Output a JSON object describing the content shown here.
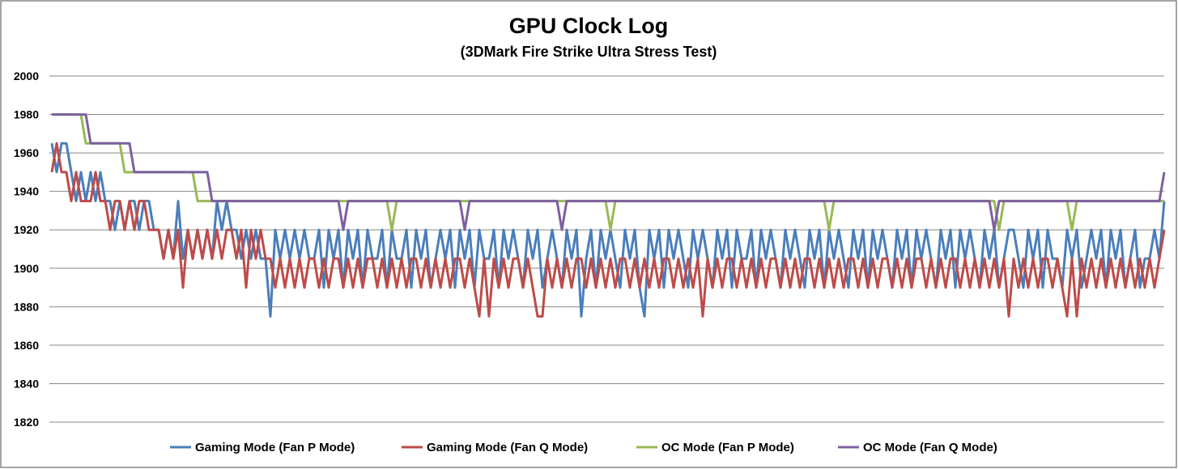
{
  "chart_data": {
    "type": "line",
    "title": "GPU Clock Log",
    "subtitle": "(3DMark Fire Strike Ultra Stress Test)",
    "xlabel": "",
    "ylabel": "",
    "ylim": [
      1820,
      2000
    ],
    "yticks": [
      2000,
      1980,
      1960,
      1940,
      1920,
      1900,
      1880,
      1860,
      1840,
      1820
    ],
    "grid": true,
    "legend_position": "bottom",
    "series": [
      {
        "name": "Gaming Mode (Fan P Mode)",
        "color": "#4a7ebb",
        "values": [
          1965,
          1950,
          1965,
          1965,
          1950,
          1935,
          1950,
          1935,
          1950,
          1935,
          1950,
          1935,
          1935,
          1920,
          1935,
          1920,
          1935,
          1935,
          1920,
          1935,
          1935,
          1920,
          1920,
          1905,
          1920,
          1905,
          1935,
          1905,
          1920,
          1905,
          1920,
          1905,
          1920,
          1905,
          1935,
          1920,
          1935,
          1920,
          1920,
          1905,
          1920,
          1905,
          1920,
          1905,
          1905,
          1875,
          1920,
          1905,
          1920,
          1905,
          1920,
          1905,
          1920,
          1905,
          1905,
          1920,
          1890,
          1920,
          1905,
          1920,
          1890,
          1920,
          1905,
          1920,
          1890,
          1920,
          1905,
          1905,
          1920,
          1890,
          1920,
          1905,
          1905,
          1920,
          1890,
          1920,
          1905,
          1920,
          1890,
          1905,
          1920,
          1905,
          1920,
          1890,
          1920,
          1905,
          1920,
          1890,
          1920,
          1905,
          1905,
          1920,
          1890,
          1920,
          1905,
          1920,
          1905,
          1890,
          1920,
          1905,
          1920,
          1890,
          1905,
          1920,
          1905,
          1890,
          1920,
          1905,
          1920,
          1875,
          1905,
          1920,
          1890,
          1920,
          1905,
          1920,
          1905,
          1890,
          1920,
          1905,
          1920,
          1890,
          1875,
          1920,
          1905,
          1920,
          1890,
          1920,
          1905,
          1920,
          1905,
          1890,
          1920,
          1905,
          1920,
          1905,
          1890,
          1920,
          1905,
          1920,
          1890,
          1920,
          1905,
          1905,
          1920,
          1890,
          1920,
          1905,
          1920,
          1905,
          1890,
          1920,
          1905,
          1920,
          1905,
          1890,
          1920,
          1905,
          1920,
          1890,
          1920,
          1905,
          1920,
          1905,
          1890,
          1920,
          1905,
          1920,
          1890,
          1920,
          1905,
          1920,
          1905,
          1890,
          1920,
          1905,
          1920,
          1890,
          1920,
          1905,
          1920,
          1905,
          1890,
          1920,
          1905,
          1920,
          1890,
          1920,
          1905,
          1920,
          1905,
          1890,
          1920,
          1905,
          1920,
          1890,
          1905,
          1920,
          1920,
          1905,
          1890,
          1920,
          1905,
          1920,
          1890,
          1920,
          1905,
          1905,
          1890,
          1920,
          1905,
          1920,
          1890,
          1905,
          1920,
          1905,
          1920,
          1890,
          1920,
          1905,
          1920,
          1890,
          1905,
          1920,
          1890,
          1905,
          1905,
          1920,
          1905,
          1935
        ]
      },
      {
        "name": "Gaming Mode (Fan Q Mode)",
        "color": "#be4b48",
        "values": [
          1950,
          1965,
          1950,
          1950,
          1935,
          1950,
          1935,
          1935,
          1935,
          1950,
          1935,
          1935,
          1920,
          1935,
          1935,
          1920,
          1935,
          1920,
          1935,
          1935,
          1920,
          1920,
          1920,
          1905,
          1920,
          1905,
          1920,
          1890,
          1920,
          1905,
          1920,
          1905,
          1920,
          1905,
          1920,
          1905,
          1920,
          1920,
          1905,
          1920,
          1890,
          1920,
          1905,
          1920,
          1905,
          1905,
          1890,
          1905,
          1890,
          1905,
          1890,
          1905,
          1890,
          1905,
          1905,
          1890,
          1905,
          1890,
          1905,
          1905,
          1890,
          1905,
          1890,
          1905,
          1890,
          1905,
          1905,
          1890,
          1905,
          1890,
          1905,
          1890,
          1905,
          1890,
          1905,
          1905,
          1890,
          1905,
          1890,
          1905,
          1890,
          1905,
          1890,
          1905,
          1905,
          1890,
          1905,
          1890,
          1875,
          1905,
          1875,
          1905,
          1890,
          1905,
          1890,
          1905,
          1905,
          1890,
          1905,
          1890,
          1875,
          1875,
          1905,
          1890,
          1905,
          1890,
          1905,
          1890,
          1905,
          1905,
          1890,
          1905,
          1890,
          1905,
          1890,
          1905,
          1890,
          1905,
          1905,
          1890,
          1905,
          1890,
          1905,
          1890,
          1905,
          1890,
          1905,
          1905,
          1890,
          1905,
          1890,
          1905,
          1890,
          1905,
          1875,
          1905,
          1890,
          1905,
          1890,
          1905,
          1905,
          1890,
          1905,
          1890,
          1905,
          1890,
          1905,
          1890,
          1905,
          1905,
          1890,
          1905,
          1890,
          1905,
          1890,
          1905,
          1905,
          1890,
          1905,
          1890,
          1905,
          1890,
          1905,
          1890,
          1905,
          1905,
          1890,
          1905,
          1890,
          1905,
          1890,
          1905,
          1905,
          1890,
          1905,
          1890,
          1905,
          1890,
          1905,
          1905,
          1890,
          1905,
          1890,
          1905,
          1890,
          1905,
          1905,
          1890,
          1905,
          1890,
          1905,
          1890,
          1905,
          1890,
          1905,
          1890,
          1905,
          1875,
          1905,
          1890,
          1905,
          1890,
          1905,
          1890,
          1905,
          1905,
          1890,
          1905,
          1890,
          1875,
          1905,
          1875,
          1905,
          1890,
          1905,
          1890,
          1905,
          1890,
          1905,
          1890,
          1905,
          1890,
          1905,
          1890,
          1905,
          1890,
          1905,
          1890,
          1905,
          1920
        ]
      },
      {
        "name": "OC Mode (Fan P Mode)",
        "color": "#98b954",
        "values": [
          1980,
          1980,
          1980,
          1980,
          1980,
          1980,
          1980,
          1965,
          1965,
          1965,
          1965,
          1965,
          1965,
          1965,
          1965,
          1950,
          1950,
          1950,
          1950,
          1950,
          1950,
          1950,
          1950,
          1950,
          1950,
          1950,
          1950,
          1950,
          1950,
          1950,
          1935,
          1935,
          1935,
          1935,
          1935,
          1935,
          1935,
          1935,
          1935,
          1935,
          1935,
          1935,
          1935,
          1935,
          1935,
          1935,
          1935,
          1935,
          1935,
          1935,
          1935,
          1935,
          1935,
          1935,
          1935,
          1935,
          1935,
          1935,
          1935,
          1935,
          1935,
          1935,
          1935,
          1935,
          1935,
          1935,
          1935,
          1935,
          1935,
          1935,
          1920,
          1935,
          1935,
          1935,
          1935,
          1935,
          1935,
          1935,
          1935,
          1935,
          1935,
          1935,
          1935,
          1935,
          1935,
          1935,
          1935,
          1935,
          1935,
          1935,
          1935,
          1935,
          1935,
          1935,
          1935,
          1935,
          1935,
          1935,
          1935,
          1935,
          1935,
          1935,
          1935,
          1935,
          1935,
          1935,
          1935,
          1935,
          1935,
          1935,
          1935,
          1935,
          1935,
          1935,
          1935,
          1920,
          1935,
          1935,
          1935,
          1935,
          1935,
          1935,
          1935,
          1935,
          1935,
          1935,
          1935,
          1935,
          1935,
          1935,
          1935,
          1935,
          1935,
          1935,
          1935,
          1935,
          1935,
          1935,
          1935,
          1935,
          1935,
          1935,
          1935,
          1935,
          1935,
          1935,
          1935,
          1935,
          1935,
          1935,
          1935,
          1935,
          1935,
          1935,
          1935,
          1935,
          1935,
          1935,
          1935,
          1935,
          1920,
          1935,
          1935,
          1935,
          1935,
          1935,
          1935,
          1935,
          1935,
          1935,
          1935,
          1935,
          1935,
          1935,
          1935,
          1935,
          1935,
          1935,
          1935,
          1935,
          1935,
          1935,
          1935,
          1935,
          1935,
          1935,
          1935,
          1935,
          1935,
          1935,
          1935,
          1935,
          1935,
          1935,
          1935,
          1920,
          1935,
          1935,
          1935,
          1935,
          1935,
          1935,
          1935,
          1935,
          1935,
          1935,
          1935,
          1935,
          1935,
          1935,
          1920,
          1935,
          1935,
          1935,
          1935,
          1935,
          1935,
          1935,
          1935,
          1935,
          1935,
          1935,
          1935,
          1935,
          1935,
          1935,
          1935,
          1935,
          1935,
          1935
        ]
      },
      {
        "name": "OC Mode (Fan Q Mode)",
        "color": "#7d60a0",
        "values": [
          1980,
          1980,
          1980,
          1980,
          1980,
          1980,
          1980,
          1980,
          1965,
          1965,
          1965,
          1965,
          1965,
          1965,
          1965,
          1965,
          1965,
          1950,
          1950,
          1950,
          1950,
          1950,
          1950,
          1950,
          1950,
          1950,
          1950,
          1950,
          1950,
          1950,
          1950,
          1950,
          1950,
          1935,
          1935,
          1935,
          1935,
          1935,
          1935,
          1935,
          1935,
          1935,
          1935,
          1935,
          1935,
          1935,
          1935,
          1935,
          1935,
          1935,
          1935,
          1935,
          1935,
          1935,
          1935,
          1935,
          1935,
          1935,
          1935,
          1935,
          1920,
          1935,
          1935,
          1935,
          1935,
          1935,
          1935,
          1935,
          1935,
          1935,
          1935,
          1935,
          1935,
          1935,
          1935,
          1935,
          1935,
          1935,
          1935,
          1935,
          1935,
          1935,
          1935,
          1935,
          1935,
          1920,
          1935,
          1935,
          1935,
          1935,
          1935,
          1935,
          1935,
          1935,
          1935,
          1935,
          1935,
          1935,
          1935,
          1935,
          1935,
          1935,
          1935,
          1935,
          1935,
          1920,
          1935,
          1935,
          1935,
          1935,
          1935,
          1935,
          1935,
          1935,
          1935,
          1935,
          1935,
          1935,
          1935,
          1935,
          1935,
          1935,
          1935,
          1935,
          1935,
          1935,
          1935,
          1935,
          1935,
          1935,
          1935,
          1935,
          1935,
          1935,
          1935,
          1935,
          1935,
          1935,
          1935,
          1935,
          1935,
          1935,
          1935,
          1935,
          1935,
          1935,
          1935,
          1935,
          1935,
          1935,
          1935,
          1935,
          1935,
          1935,
          1935,
          1935,
          1935,
          1935,
          1935,
          1935,
          1935,
          1935,
          1935,
          1935,
          1935,
          1935,
          1935,
          1935,
          1935,
          1935,
          1935,
          1935,
          1935,
          1935,
          1935,
          1935,
          1935,
          1935,
          1935,
          1935,
          1935,
          1935,
          1935,
          1935,
          1935,
          1935,
          1935,
          1935,
          1935,
          1935,
          1935,
          1935,
          1935,
          1935,
          1920,
          1935,
          1935,
          1935,
          1935,
          1935,
          1935,
          1935,
          1935,
          1935,
          1935,
          1935,
          1935,
          1935,
          1935,
          1935,
          1935,
          1935,
          1935,
          1935,
          1935,
          1935,
          1935,
          1935,
          1935,
          1935,
          1935,
          1935,
          1935,
          1935,
          1935,
          1935,
          1935,
          1935,
          1935,
          1950
        ]
      }
    ]
  }
}
